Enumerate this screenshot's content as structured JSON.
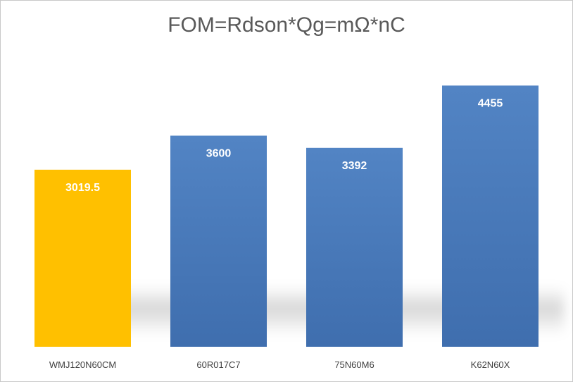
{
  "chart_data": {
    "type": "bar",
    "title": "FOM=Rdson*Qg=mΩ*nC",
    "xlabel": "",
    "ylabel": "",
    "categories": [
      "WMJ120N60CM",
      "60R017C7",
      "75N60M6",
      "K62N60X"
    ],
    "values": [
      3019.5,
      3600,
      3392,
      4455
    ],
    "data_labels": [
      "3019.5",
      "3600",
      "3392",
      "4455"
    ],
    "ylim": [
      0,
      4700
    ],
    "grid": false,
    "legend": "none",
    "colors": {
      "highlight": "#FFC000",
      "default_top": "#5284C4",
      "default_bottom": "#3F6EAE"
    },
    "highlight_index": 0
  }
}
